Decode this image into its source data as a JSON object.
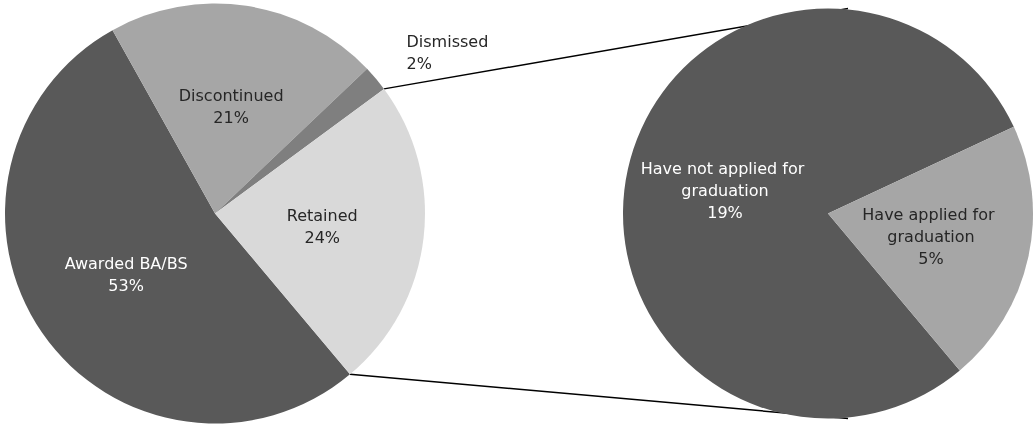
{
  "chart_data": [
    {
      "type": "pie",
      "categories": [
        "Awarded BA/BS",
        "Discontinued",
        "Dismissed",
        "Retained"
      ],
      "values": [
        53,
        21,
        2,
        24
      ],
      "colors": [
        "#595959",
        "#a6a6a6",
        "#7f7f7f",
        "#d9d9d9"
      ],
      "value_labels": [
        "53%",
        "21%",
        "2%",
        "24%"
      ]
    },
    {
      "type": "pie",
      "categories": [
        "Have not applied for graduation",
        "Have applied for graduation"
      ],
      "values": [
        19,
        5
      ],
      "colors": [
        "#595959",
        "#a6a6a6"
      ],
      "value_labels": [
        "19%",
        "5%"
      ]
    }
  ]
}
